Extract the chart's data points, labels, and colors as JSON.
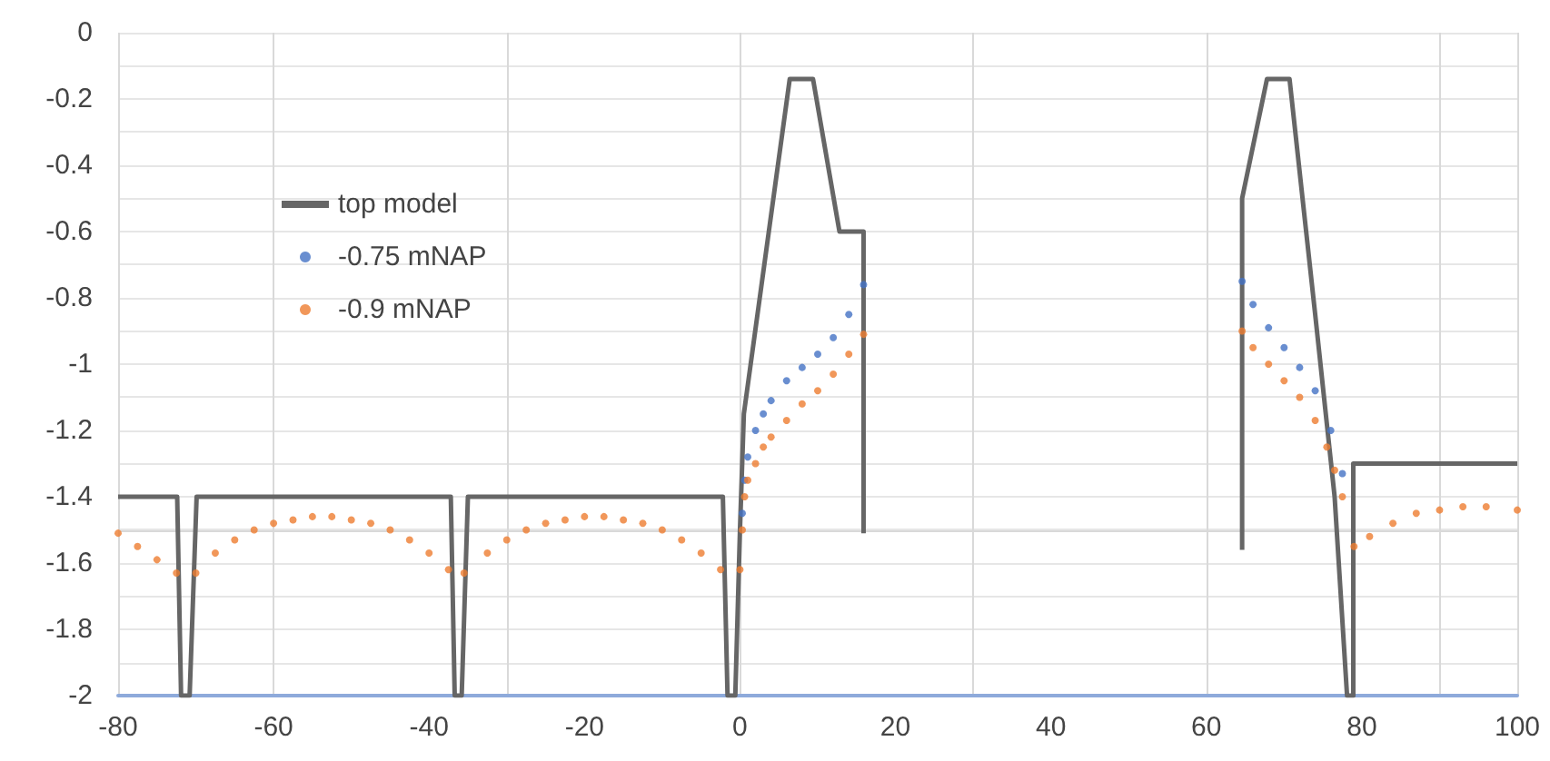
{
  "chart_data": {
    "type": "scatter",
    "xlim": [
      -80,
      100
    ],
    "xticks": [
      -80,
      -60,
      -40,
      -20,
      0,
      20,
      40,
      60,
      80,
      100
    ],
    "ylim": [
      -2,
      0
    ],
    "yticks": [
      -2,
      -1.8,
      -1.6,
      -1.4,
      -1.2,
      -1,
      -0.8,
      -0.6,
      -0.4,
      -0.2,
      0
    ],
    "grid": true,
    "legend": "top left",
    "marker": "circle",
    "series": [
      {
        "name": "top model",
        "type": "line",
        "color": "#666666",
        "marker": "none",
        "line_style": "solid",
        "x": [
          -80,
          -72.4,
          -71.9,
          -70.8,
          -69.9,
          -37.2,
          -36.7,
          -35.8,
          -35,
          -2.2,
          -1.6,
          -0.6,
          0,
          0.5,
          6.4,
          9.4,
          12.8,
          15.9,
          15.9
        ],
        "values": [
          -1.4,
          -1.4,
          -2,
          -2,
          -1.4,
          -1.4,
          -2,
          -2,
          -1.4,
          -1.4,
          -2,
          -2,
          -1.5,
          -1.15,
          -0.14,
          -0.14,
          -0.6,
          -0.6,
          -1.51
        ]
      },
      {
        "name": null,
        "type": "line",
        "color": "#666666",
        "marker": "none",
        "line_style": "solid",
        "x": [
          64.6,
          64.6,
          67.8,
          70.7,
          74,
          76.5,
          78.1,
          78.9,
          78.9,
          100
        ],
        "values": [
          -1.56,
          -0.5,
          -0.14,
          -0.14,
          -0.85,
          -1.4,
          -2,
          -2,
          -1.3,
          -1.3
        ]
      },
      {
        "name": "-0.75 mNAP",
        "color": "#4472c4",
        "x": [
          0.3,
          0.6,
          1,
          2,
          3,
          4,
          6,
          8,
          10,
          12,
          14,
          15.9,
          64.6,
          66,
          68,
          70,
          72,
          74,
          76,
          77.5
        ],
        "values": [
          -1.45,
          -1.35,
          -1.28,
          -1.2,
          -1.15,
          -1.11,
          -1.05,
          -1.01,
          -0.97,
          -0.92,
          -0.85,
          -0.76,
          -0.75,
          -0.82,
          -0.89,
          -0.95,
          -1.01,
          -1.08,
          -1.2,
          -1.33
        ]
      },
      {
        "name": "-0.9 mNAP",
        "color": "#ed7d31",
        "x": [
          -80,
          -77.5,
          -75,
          -72.5,
          -70,
          -67.5,
          -65,
          -62.5,
          -60,
          -57.5,
          -55,
          -52.5,
          -50,
          -47.5,
          -45,
          -42.5,
          -40,
          -37.5,
          -35.5,
          -32.5,
          -30,
          -27.5,
          -25,
          -22.5,
          -20,
          -17.5,
          -15,
          -12.5,
          -10,
          -7.5,
          -5,
          -2.5,
          0,
          0.3,
          0.6,
          1,
          2,
          3,
          4,
          6,
          8,
          10,
          12,
          14,
          15.9,
          64.6,
          66,
          68,
          70,
          72,
          74,
          75.5,
          76.5,
          77.5,
          79,
          81,
          84,
          87,
          90,
          93,
          96,
          100
        ],
        "values": [
          -1.51,
          -1.55,
          -1.59,
          -1.63,
          -1.63,
          -1.57,
          -1.53,
          -1.5,
          -1.48,
          -1.47,
          -1.46,
          -1.46,
          -1.47,
          -1.48,
          -1.5,
          -1.53,
          -1.57,
          -1.62,
          -1.63,
          -1.57,
          -1.53,
          -1.5,
          -1.48,
          -1.47,
          -1.46,
          -1.46,
          -1.47,
          -1.48,
          -1.5,
          -1.53,
          -1.57,
          -1.62,
          -1.62,
          -1.5,
          -1.4,
          -1.35,
          -1.3,
          -1.25,
          -1.22,
          -1.17,
          -1.12,
          -1.08,
          -1.03,
          -0.97,
          -0.91,
          -0.9,
          -0.95,
          -1,
          -1.05,
          -1.1,
          -1.17,
          -1.25,
          -1.32,
          -1.4,
          -1.55,
          -1.52,
          -1.48,
          -1.45,
          -1.44,
          -1.43,
          -1.43,
          -1.44
        ]
      }
    ]
  }
}
